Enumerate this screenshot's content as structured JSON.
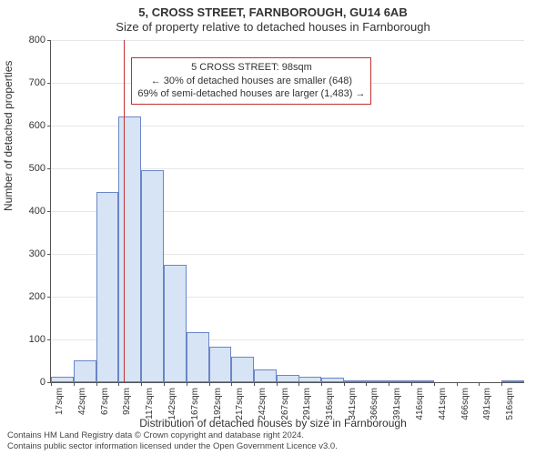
{
  "title": "5, CROSS STREET, FARNBOROUGH, GU14 6AB",
  "subtitle": "Size of property relative to detached houses in Farnborough",
  "y_axis_label": "Number of detached properties",
  "x_axis_label": "Distribution of detached houses by size in Farnborough",
  "chart": {
    "type": "histogram",
    "background_color": "#ffffff",
    "grid_color": "#e6e6e6",
    "axis_color": "#555555",
    "bar_fill": "#d6e4f5",
    "bar_stroke": "#6a86c7",
    "bar_width_ratio": 1.0,
    "reference_line": {
      "color": "#c43131",
      "value_sqm": 98
    },
    "ylim": [
      0,
      800
    ],
    "ytick_step": 100,
    "x_binwidth": 25,
    "x_ticks": [
      17,
      42,
      67,
      92,
      117,
      142,
      167,
      192,
      217,
      242,
      267,
      291,
      316,
      341,
      366,
      391,
      416,
      441,
      466,
      491,
      516
    ],
    "x_tick_suffix": "sqm",
    "bars": [
      {
        "x0": 17,
        "count": 12
      },
      {
        "x0": 42,
        "count": 52
      },
      {
        "x0": 67,
        "count": 445
      },
      {
        "x0": 92,
        "count": 622
      },
      {
        "x0": 117,
        "count": 495
      },
      {
        "x0": 142,
        "count": 275
      },
      {
        "x0": 167,
        "count": 117
      },
      {
        "x0": 192,
        "count": 82
      },
      {
        "x0": 217,
        "count": 60
      },
      {
        "x0": 242,
        "count": 30
      },
      {
        "x0": 267,
        "count": 18
      },
      {
        "x0": 291,
        "count": 13
      },
      {
        "x0": 316,
        "count": 11
      },
      {
        "x0": 341,
        "count": 4
      },
      {
        "x0": 366,
        "count": 1
      },
      {
        "x0": 391,
        "count": 2
      },
      {
        "x0": 416,
        "count": 1
      },
      {
        "x0": 441,
        "count": 0
      },
      {
        "x0": 466,
        "count": 0
      },
      {
        "x0": 491,
        "count": 0
      },
      {
        "x0": 516,
        "count": 1
      }
    ]
  },
  "annotation": {
    "line1": "5 CROSS STREET: 98sqm",
    "line2": "← 30% of detached houses are smaller (648)",
    "line3": "69% of semi-detached houses are larger (1,483) →",
    "border_color": "#c43131",
    "fontsize": 11
  },
  "attribution": {
    "line1": "Contains HM Land Registry data © Crown copyright and database right 2024.",
    "line2": "Contains public sector information licensed under the Open Government Licence v3.0."
  },
  "fontsizes": {
    "title": 13,
    "subtitle": 13,
    "axis_label": 12,
    "tick": 11,
    "xtick": 10,
    "attribution": 9.5
  }
}
